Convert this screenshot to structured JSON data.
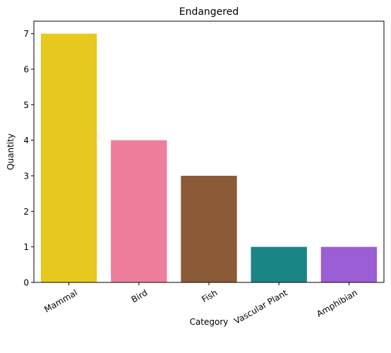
{
  "chart_data": {
    "type": "bar",
    "title": "Endangered",
    "xlabel": "Category",
    "ylabel": "Quantity",
    "categories": [
      "Mammal",
      "Bird",
      "Fish",
      "Vascular Plant",
      "Amphibian"
    ],
    "values": [
      7,
      4,
      3,
      1,
      1
    ],
    "colors": [
      "#e6c81e",
      "#ee7f9c",
      "#8b5a37",
      "#1a8584",
      "#9b5ed4"
    ],
    "ylim": [
      0,
      7.35
    ],
    "yticks": [
      0,
      1,
      2,
      3,
      4,
      5,
      6,
      7
    ],
    "grid": false,
    "legend": "none"
  }
}
